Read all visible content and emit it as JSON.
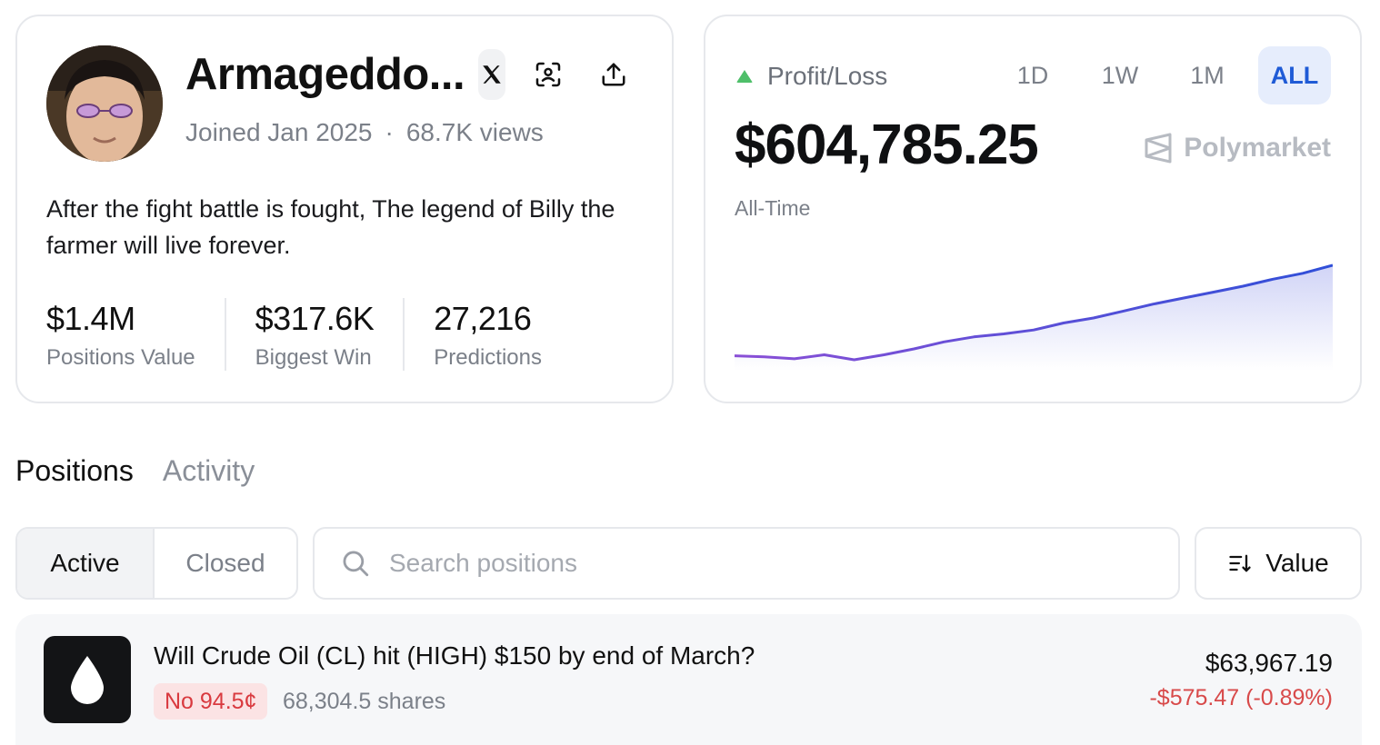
{
  "profile": {
    "username": "Armageddo...",
    "joined": "Joined Jan 2025",
    "views": "68.7K views",
    "bio": "After the fight battle is fought, The legend of Billy the farmer will live forever.",
    "stats": [
      {
        "value": "$1.4M",
        "label": "Positions Value"
      },
      {
        "value": "$317.6K",
        "label": "Biggest Win"
      },
      {
        "value": "27,216",
        "label": "Predictions"
      }
    ],
    "icons": [
      "x-logo-icon",
      "scan-face-icon",
      "share-upload-icon"
    ]
  },
  "pnl": {
    "title": "Profit/Loss",
    "value": "$604,785.25",
    "period": "All-Time",
    "brand": "Polymarket",
    "ranges": [
      "1D",
      "1W",
      "1M",
      "ALL"
    ],
    "active_range": "ALL",
    "colors": {
      "up": "#4fbf6a",
      "line_start": "#8a4fd6",
      "line_end": "#2f4fd8",
      "active_range": "#1f5bd6"
    }
  },
  "chart_data": {
    "type": "area",
    "x": [
      0,
      5,
      10,
      15,
      20,
      25,
      30,
      35,
      40,
      45,
      50,
      55,
      60,
      65,
      70,
      75,
      80,
      85,
      90,
      95,
      100
    ],
    "values": [
      0,
      -1,
      -3,
      1,
      -4,
      1,
      7,
      14,
      19,
      22,
      26,
      33,
      38,
      45,
      52,
      58,
      64,
      70,
      77,
      83,
      91
    ],
    "title": "",
    "xlabel": "",
    "ylabel": "",
    "grid": false
  },
  "tabs": [
    {
      "label": "Positions",
      "active": true
    },
    {
      "label": "Activity",
      "active": false
    }
  ],
  "filters": {
    "segments": [
      "Active",
      "Closed"
    ],
    "active_segment": "Active",
    "search_placeholder": "Search positions",
    "sort_label": "Value"
  },
  "positions": [
    {
      "title": "Will Crude Oil (CL) hit (HIGH) $150 by end of March?",
      "outcome": "No 94.5¢",
      "shares": "68,304.5 shares",
      "value": "$63,967.19",
      "change": "-$575.47 (-0.89%)",
      "icon": "oil-drop-icon"
    }
  ]
}
